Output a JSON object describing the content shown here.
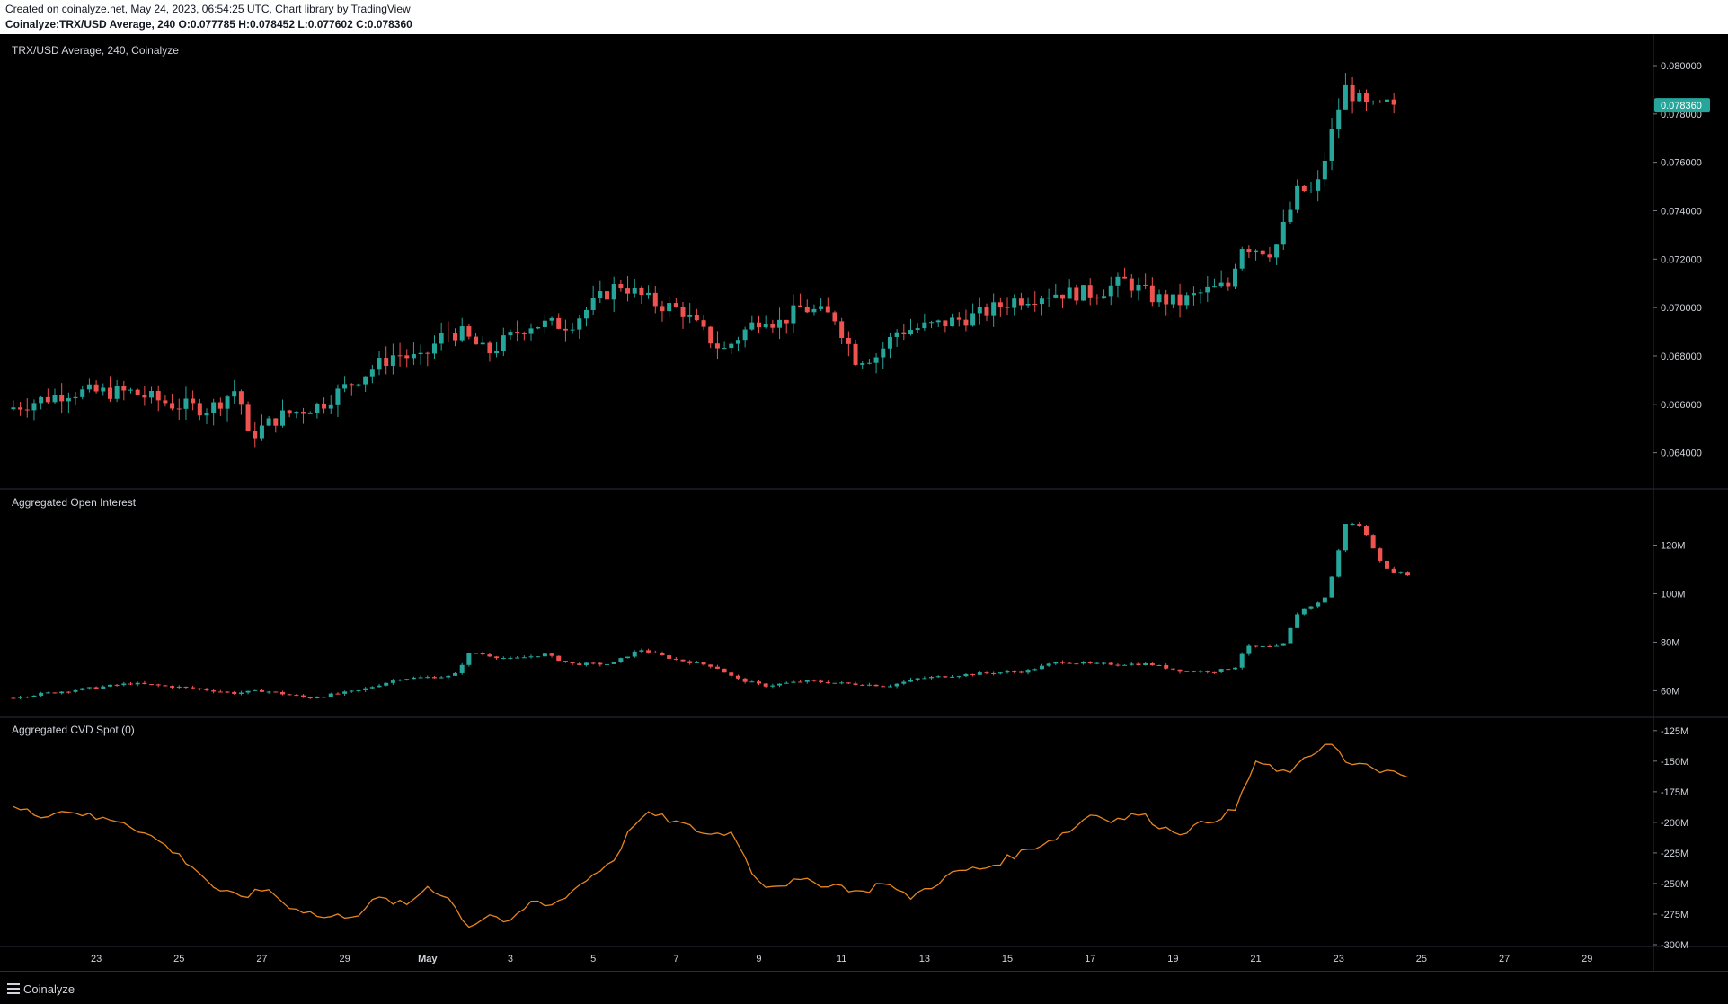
{
  "header": {
    "created": "Created on coinalyze.net, May 24, 2023, 06:54:25 UTC, Chart library by TradingView",
    "symbol_line": "Coinalyze:TRX/USD Average, 240",
    "o_label": "O:",
    "o_value": "0.077785",
    "h_label": "H:",
    "h_value": "0.078452",
    "l_label": "L:",
    "l_value": "0.077602",
    "c_label": "C:",
    "c_value": "0.078360"
  },
  "footer": {
    "brand": "Coinalyze"
  },
  "colors": {
    "up": "#26a69a",
    "down": "#ef5350",
    "cvd": "#e8851f",
    "badge": "#26a69a",
    "grid": "#2a2e39"
  },
  "chart_data": [
    {
      "type": "candlestick",
      "title": "TRX/USD Average, 240, Coinalyze",
      "ylim": [
        0.0625,
        0.0813
      ],
      "y_ticks": [
        "0.080000",
        "0.078000",
        "0.076000",
        "0.074000",
        "0.072000",
        "0.070000",
        "0.068000",
        "0.066000",
        "0.064000"
      ],
      "last_price_label": "0.078360",
      "last_price": 0.07836,
      "anchors": [
        {
          "day": 21.0,
          "v": 0.0658
        },
        {
          "day": 22.5,
          "v": 0.0665
        },
        {
          "day": 24.0,
          "v": 0.0665
        },
        {
          "day": 25.0,
          "v": 0.066
        },
        {
          "day": 25.9,
          "v": 0.0658
        },
        {
          "day": 26.6,
          "v": 0.0667
        },
        {
          "day": 26.8,
          "v": 0.0646
        },
        {
          "day": 27.6,
          "v": 0.0655
        },
        {
          "day": 28.6,
          "v": 0.066
        },
        {
          "day": 29.5,
          "v": 0.0671
        },
        {
          "day": 30.4,
          "v": 0.0681
        },
        {
          "day": 31.0,
          "v": 0.0678
        },
        {
          "day": 31.6,
          "v": 0.069
        },
        {
          "day": 32.0,
          "v": 0.0689
        },
        {
          "day": 32.6,
          "v": 0.0681
        },
        {
          "day": 33.6,
          "v": 0.0693
        },
        {
          "day": 34.6,
          "v": 0.0693
        },
        {
          "day": 35.2,
          "v": 0.0702
        },
        {
          "day": 35.8,
          "v": 0.071
        },
        {
          "day": 36.6,
          "v": 0.0702
        },
        {
          "day": 37.3,
          "v": 0.0699
        },
        {
          "day": 37.8,
          "v": 0.069
        },
        {
          "day": 38.3,
          "v": 0.0682
        },
        {
          "day": 38.8,
          "v": 0.069
        },
        {
          "day": 39.3,
          "v": 0.0697
        },
        {
          "day": 39.6,
          "v": 0.0693
        },
        {
          "day": 40.2,
          "v": 0.07
        },
        {
          "day": 41.0,
          "v": 0.0696
        },
        {
          "day": 41.5,
          "v": 0.0679
        },
        {
          "day": 42.0,
          "v": 0.068
        },
        {
          "day": 42.5,
          "v": 0.069
        },
        {
          "day": 43.5,
          "v": 0.0693
        },
        {
          "day": 44.5,
          "v": 0.0697
        },
        {
          "day": 45.3,
          "v": 0.0703
        },
        {
          "day": 46.2,
          "v": 0.0706
        },
        {
          "day": 47.3,
          "v": 0.0706
        },
        {
          "day": 48.0,
          "v": 0.0711
        },
        {
          "day": 48.7,
          "v": 0.0704
        },
        {
          "day": 49.3,
          "v": 0.0702
        },
        {
          "day": 50.0,
          "v": 0.0707
        },
        {
          "day": 50.5,
          "v": 0.0709
        },
        {
          "day": 50.8,
          "v": 0.0726
        },
        {
          "day": 51.6,
          "v": 0.0723
        },
        {
          "day": 52.2,
          "v": 0.0749
        },
        {
          "day": 52.6,
          "v": 0.0747
        },
        {
          "day": 53.0,
          "v": 0.0772
        },
        {
          "day": 53.3,
          "v": 0.0791
        },
        {
          "day": 53.9,
          "v": 0.0782
        },
        {
          "day": 54.4,
          "v": 0.0784
        }
      ]
    },
    {
      "type": "candlestick",
      "title": "Aggregated Open Interest",
      "ylim": [
        52,
        135
      ],
      "y_ticks": [
        "120M",
        "100M",
        "80M",
        "60M"
      ],
      "y_tick_values": [
        120,
        100,
        80,
        60
      ],
      "unit": "M",
      "anchors": [
        {
          "day": 21.0,
          "v": 57
        },
        {
          "day": 22.5,
          "v": 60
        },
        {
          "day": 24.0,
          "v": 63
        },
        {
          "day": 25.5,
          "v": 61
        },
        {
          "day": 26.5,
          "v": 59
        },
        {
          "day": 27.2,
          "v": 60
        },
        {
          "day": 28.3,
          "v": 57
        },
        {
          "day": 29.5,
          "v": 60
        },
        {
          "day": 30.5,
          "v": 65
        },
        {
          "day": 31.8,
          "v": 66
        },
        {
          "day": 32.2,
          "v": 76
        },
        {
          "day": 32.8,
          "v": 74
        },
        {
          "day": 33.2,
          "v": 73
        },
        {
          "day": 34.0,
          "v": 75
        },
        {
          "day": 34.6,
          "v": 71
        },
        {
          "day": 35.6,
          "v": 71
        },
        {
          "day": 36.3,
          "v": 77
        },
        {
          "day": 37.1,
          "v": 73
        },
        {
          "day": 38.1,
          "v": 70
        },
        {
          "day": 38.6,
          "v": 65
        },
        {
          "day": 39.3,
          "v": 62
        },
        {
          "day": 40.3,
          "v": 64
        },
        {
          "day": 41.2,
          "v": 63
        },
        {
          "day": 42.3,
          "v": 62
        },
        {
          "day": 43.0,
          "v": 65
        },
        {
          "day": 44.4,
          "v": 67
        },
        {
          "day": 45.6,
          "v": 68
        },
        {
          "day": 46.4,
          "v": 72
        },
        {
          "day": 47.2,
          "v": 71
        },
        {
          "day": 48.6,
          "v": 71
        },
        {
          "day": 49.4,
          "v": 68
        },
        {
          "day": 50.2,
          "v": 68
        },
        {
          "day": 50.7,
          "v": 70
        },
        {
          "day": 50.9,
          "v": 78
        },
        {
          "day": 51.8,
          "v": 78
        },
        {
          "day": 52.2,
          "v": 93
        },
        {
          "day": 52.8,
          "v": 97
        },
        {
          "day": 53.1,
          "v": 112
        },
        {
          "day": 53.3,
          "v": 129
        },
        {
          "day": 53.7,
          "v": 128
        },
        {
          "day": 54.3,
          "v": 110
        },
        {
          "day": 54.8,
          "v": 108
        }
      ]
    },
    {
      "type": "line",
      "title": "Aggregated CVD Spot (0)",
      "ylim": [
        -300,
        -120
      ],
      "y_ticks": [
        "-125M",
        "-150M",
        "-175M",
        "-200M",
        "-225M",
        "-250M",
        "-275M",
        "-300M"
      ],
      "y_tick_values": [
        -125,
        -150,
        -175,
        -200,
        -225,
        -250,
        -275,
        -300
      ],
      "unit": "M",
      "anchors": [
        {
          "day": 21.0,
          "v": -188
        },
        {
          "day": 21.6,
          "v": -194
        },
        {
          "day": 22.4,
          "v": -190
        },
        {
          "day": 23.0,
          "v": -197
        },
        {
          "day": 23.6,
          "v": -198
        },
        {
          "day": 24.5,
          "v": -215
        },
        {
          "day": 25.3,
          "v": -235
        },
        {
          "day": 26.0,
          "v": -258
        },
        {
          "day": 26.6,
          "v": -260
        },
        {
          "day": 27.2,
          "v": -254
        },
        {
          "day": 27.5,
          "v": -266
        },
        {
          "day": 28.5,
          "v": -278
        },
        {
          "day": 29.3,
          "v": -275
        },
        {
          "day": 29.8,
          "v": -262
        },
        {
          "day": 30.5,
          "v": -268
        },
        {
          "day": 31.0,
          "v": -252
        },
        {
          "day": 31.5,
          "v": -262
        },
        {
          "day": 32.0,
          "v": -285
        },
        {
          "day": 32.5,
          "v": -275
        },
        {
          "day": 33.0,
          "v": -283
        },
        {
          "day": 33.5,
          "v": -265
        },
        {
          "day": 34.0,
          "v": -268
        },
        {
          "day": 34.8,
          "v": -248
        },
        {
          "day": 35.5,
          "v": -230
        },
        {
          "day": 36.0,
          "v": -200
        },
        {
          "day": 36.4,
          "v": -193
        },
        {
          "day": 37.0,
          "v": -200
        },
        {
          "day": 37.8,
          "v": -210
        },
        {
          "day": 38.4,
          "v": -208
        },
        {
          "day": 38.8,
          "v": -240
        },
        {
          "day": 39.2,
          "v": -252
        },
        {
          "day": 40.0,
          "v": -248
        },
        {
          "day": 41.0,
          "v": -252
        },
        {
          "day": 41.5,
          "v": -258
        },
        {
          "day": 42.0,
          "v": -248
        },
        {
          "day": 42.6,
          "v": -262
        },
        {
          "day": 43.0,
          "v": -255
        },
        {
          "day": 43.8,
          "v": -240
        },
        {
          "day": 44.5,
          "v": -237
        },
        {
          "day": 45.3,
          "v": -225
        },
        {
          "day": 46.0,
          "v": -215
        },
        {
          "day": 46.6,
          "v": -205
        },
        {
          "day": 47.0,
          "v": -193
        },
        {
          "day": 47.6,
          "v": -198
        },
        {
          "day": 48.2,
          "v": -193
        },
        {
          "day": 48.8,
          "v": -205
        },
        {
          "day": 49.2,
          "v": -208
        },
        {
          "day": 49.8,
          "v": -200
        },
        {
          "day": 50.5,
          "v": -190
        },
        {
          "day": 51.0,
          "v": -150
        },
        {
          "day": 51.6,
          "v": -160
        },
        {
          "day": 52.0,
          "v": -155
        },
        {
          "day": 52.3,
          "v": -146
        },
        {
          "day": 52.8,
          "v": -132
        },
        {
          "day": 53.2,
          "v": -153
        },
        {
          "day": 53.8,
          "v": -155
        },
        {
          "day": 54.3,
          "v": -160
        },
        {
          "day": 54.6,
          "v": -165
        },
        {
          "day": 54.8,
          "v": -160
        }
      ]
    }
  ],
  "x_axis": {
    "ticks": [
      {
        "label": "23",
        "day": 23
      },
      {
        "label": "25",
        "day": 25
      },
      {
        "label": "27",
        "day": 27
      },
      {
        "label": "29",
        "day": 29
      },
      {
        "label": "May",
        "day": 31
      },
      {
        "label": "3",
        "day": 33
      },
      {
        "label": "5",
        "day": 35
      },
      {
        "label": "7",
        "day": 37
      },
      {
        "label": "9",
        "day": 39
      },
      {
        "label": "11",
        "day": 41
      },
      {
        "label": "13",
        "day": 43
      },
      {
        "label": "15",
        "day": 45
      },
      {
        "label": "17",
        "day": 47
      },
      {
        "label": "19",
        "day": 49
      },
      {
        "label": "21",
        "day": 51
      },
      {
        "label": "23",
        "day": 53
      },
      {
        "label": "25",
        "day": 55
      },
      {
        "label": "27",
        "day": 57
      },
      {
        "label": "29",
        "day": 59
      }
    ],
    "range": [
      20.85,
      60.6
    ]
  }
}
